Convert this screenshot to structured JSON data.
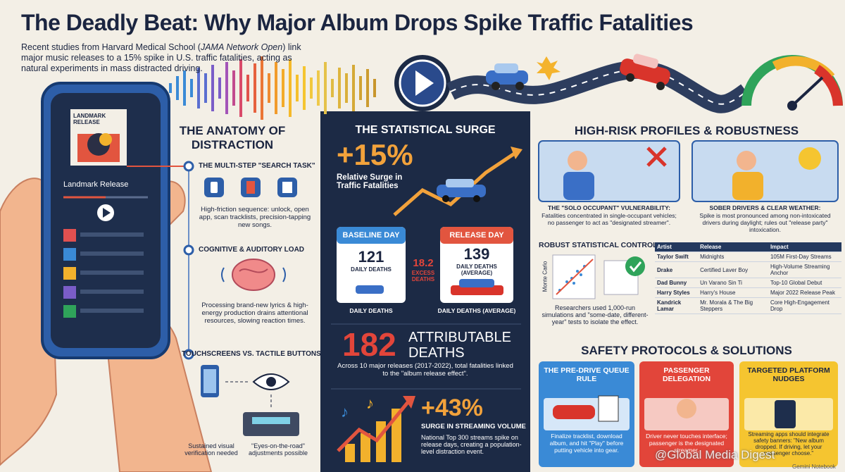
{
  "header": {
    "title": "The Deadly Beat: Why Major Album Drops Spike Traffic Fatalities",
    "intro": [
      "Recent studies from Harvard Medical School (",
      "JAMA Network Open",
      ") link major music releases to a 15% spike in U.S. traffic fatalities, acting as natural experiments in mass distracted driving."
    ]
  },
  "phone": {
    "album_label": "LANDMARK RELEASE",
    "track": "Landmark Release"
  },
  "anatomy": {
    "title": "THE ANATOMY OF DISTRACTION",
    "items": [
      {
        "heading": "THE MULTI-STEP \"SEARCH TASK\"",
        "text": "High-friction sequence: unlock, open app, scan tracklists, precision-tapping new songs."
      },
      {
        "heading": "COGNITIVE & AUDITORY LOAD",
        "text": "Processing brand-new lyrics & high-energy production drains attentional resources, slowing reaction times."
      },
      {
        "heading": "TOUCHSCREENS VS. TACTILE BUTTONS",
        "captions": [
          "Sustained visual verification needed",
          "\"Eyes-on-the-road\" adjustments possible"
        ]
      }
    ]
  },
  "surge": {
    "title": "THE STATISTICAL SURGE",
    "big": "+15%",
    "big_caption": "Relative Surge in Traffic Fatalities",
    "baseline": {
      "label": "BASELINE DAY",
      "value": "121",
      "unit": "DAILY DEATHS",
      "caption": "DAILY DEATHS"
    },
    "release": {
      "label": "RELEASE DAY",
      "value": "139",
      "unit": "DAILY DEATHS (AVERAGE)",
      "caption": "DAILY DEATHS (AVERAGE)"
    },
    "excess": {
      "value": "18.2",
      "label": "EXCESS DEATHS"
    },
    "attributable": {
      "value": "182",
      "label": "ATTRIBUTABLE DEATHS",
      "text": "Across 10 major releases (2017-2022), total fatalities linked to the \"album release effect\"."
    },
    "streaming": {
      "value": "+43%",
      "label": "SURGE IN STREAMING VOLUME",
      "text": "National Top 300 streams spike on release days, creating a population-level distraction event."
    }
  },
  "profiles": {
    "title": "HIGH-RISK PROFILES & ROBUSTNESS",
    "cards": [
      {
        "heading": "THE \"SOLO OCCUPANT\" VULNERABILITY:",
        "text": "Fatalities concentrated in single-occupant vehicles; no passenger to act as \"designated streamer\"."
      },
      {
        "heading": "SOBER DRIVERS & CLEAR WEATHER:",
        "text": "Spike is most pronounced among non-intoxicated drivers during daylight; rules out \"release party\" intoxication."
      }
    ]
  },
  "controls": {
    "title": "ROBUST STATISTICAL CONTROLS",
    "axis_label": "Monte Carlo",
    "text": "Researchers used 1,000-run simulations and \"some-date, different-year\" tests to isolate the effect.",
    "table": {
      "header": [
        "Artist",
        "Release",
        "Impact"
      ],
      "rows": [
        [
          "Taylor Swift",
          "Midnights",
          "105M First-Day Streams"
        ],
        [
          "Drake",
          "Certified Laver Boy",
          "High-Volume Streaming Anchor"
        ],
        [
          "Dad Bunny",
          "Un Varano Sin Ti",
          "Top-10 Global Debut"
        ],
        [
          "Harry Styles",
          "Harry's House",
          "Major 2022 Release Peak"
        ],
        [
          "Kandrick Lamar",
          "Mr. Morala & The Big Steppers",
          "Core High-Engagement Drop"
        ]
      ]
    }
  },
  "safety": {
    "title": "SAFETY PROTOCOLS & SOLUTIONS",
    "cards": [
      {
        "heading": "THE PRE-DRIVE QUEUE RULE",
        "text": "Finalize tracklist, download album, and hit \"Play\" before putting vehicle into gear."
      },
      {
        "heading": "PASSENGER DELEGATION",
        "text": "Driver never touches interface; passenger is the designated streamer."
      },
      {
        "heading": "TARGETED PLATFORM NUDGES",
        "text": "Streaming apps should integrate safety banners: \"New album dropped. If driving, let your passenger choose.\""
      }
    ]
  },
  "watermark": {
    "main": "@Global Media Digest",
    "sub": "Gemini Notebook"
  }
}
